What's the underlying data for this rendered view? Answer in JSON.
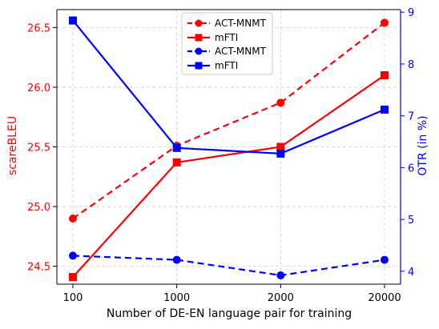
{
  "chart_data": {
    "type": "line",
    "categories": [
      "100",
      "1000",
      "2000",
      "20000"
    ],
    "xlabel": "Number of DE-EN language pair for training",
    "y_left": {
      "label": "scareBLEU",
      "color": "#ff0000",
      "ylim": [
        24.35,
        26.65
      ],
      "ticks": [
        "24.5",
        "25.0",
        "25.5",
        "26.0",
        "26.5"
      ]
    },
    "y_right": {
      "label": "OTR (in %)",
      "color": "#0000ff",
      "ylim": [
        3.75,
        9.05
      ],
      "ticks": [
        "4",
        "5",
        "6",
        "7",
        "8",
        "9"
      ]
    },
    "grid": true,
    "legend_position": "top-center",
    "series": [
      {
        "name": "ACT-MNMT",
        "axis": "left",
        "color": "#ff0000",
        "marker": "circle",
        "linestyle": "dashed",
        "values": [
          24.9,
          25.51,
          25.87,
          26.54
        ]
      },
      {
        "name": "mFTI",
        "axis": "left",
        "color": "#ff0000",
        "marker": "square",
        "linestyle": "solid",
        "values": [
          24.41,
          25.37,
          25.5,
          26.1
        ]
      },
      {
        "name": "ACT-MNMT",
        "axis": "right",
        "color": "#0000ff",
        "marker": "circle",
        "linestyle": "dashed",
        "values": [
          4.3,
          4.22,
          3.92,
          4.22
        ]
      },
      {
        "name": "mFTI",
        "axis": "right",
        "color": "#0000ff",
        "marker": "square",
        "linestyle": "solid",
        "values": [
          8.84,
          6.38,
          6.27,
          7.12
        ]
      }
    ]
  }
}
